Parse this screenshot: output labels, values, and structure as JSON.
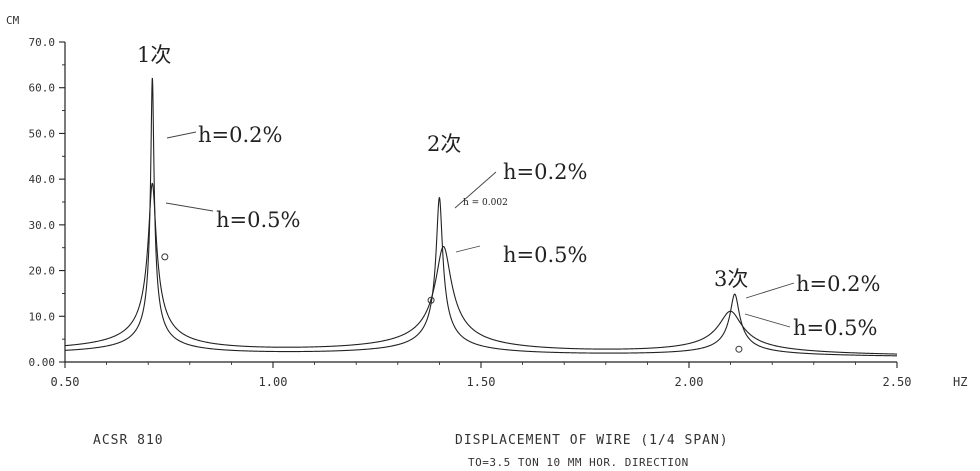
{
  "chart_data": {
    "type": "line",
    "title": "",
    "xlabel": "",
    "ylabel": "",
    "y_unit": "CM",
    "x_unit": "HZ",
    "xlim": [
      0.5,
      2.5
    ],
    "ylim": [
      0,
      70
    ],
    "x_ticks": [
      0.5,
      1.0,
      1.5,
      2.0,
      2.5
    ],
    "x_tick_labels": [
      "0.50",
      "1.00",
      "1.50",
      "2.00",
      "2.50"
    ],
    "y_ticks": [
      0,
      10,
      20,
      30,
      40,
      50,
      60,
      70
    ],
    "y_tick_labels": [
      "0.00",
      "10.0",
      "20.0",
      "30.0",
      "40.0",
      "50.0",
      "60.0",
      "70.0"
    ],
    "grid": false,
    "legend": "none",
    "series": [
      {
        "name": "h=0.2%",
        "peaks": [
          {
            "x": 0.71,
            "y": 61.5
          },
          {
            "x": 1.4,
            "y": 35.5
          },
          {
            "x": 2.11,
            "y": 14.5
          }
        ]
      },
      {
        "name": "h=0.5%",
        "peaks": [
          {
            "x": 0.71,
            "y": 38.0
          },
          {
            "x": 1.41,
            "y": 24.5
          },
          {
            "x": 2.1,
            "y": 10.5
          }
        ]
      }
    ],
    "measured_points": [
      {
        "x": 0.74,
        "y": 23.0
      },
      {
        "x": 1.38,
        "y": 13.5
      },
      {
        "x": 2.12,
        "y": 2.8
      }
    ],
    "annotations": {
      "mode_1": "1次",
      "mode_2": "2次",
      "mode_3": "3次",
      "h02_label_1": "h=0.2%",
      "h05_label_1": "h=0.5%",
      "h02_label_2": "h=0.2%",
      "h002_small": "h = 0.002",
      "h05_label_2": "h=0.5%",
      "h02_label_3": "h=0.2%",
      "h05_label_3": "h=0.5%"
    },
    "caption": {
      "left": "ACSR 810",
      "right_line1": "DISPLACEMENT OF WIRE (1/4 SPAN)",
      "right_line2": "TO=3.5 TON  10 MM  HOR. DIRECTION"
    }
  }
}
